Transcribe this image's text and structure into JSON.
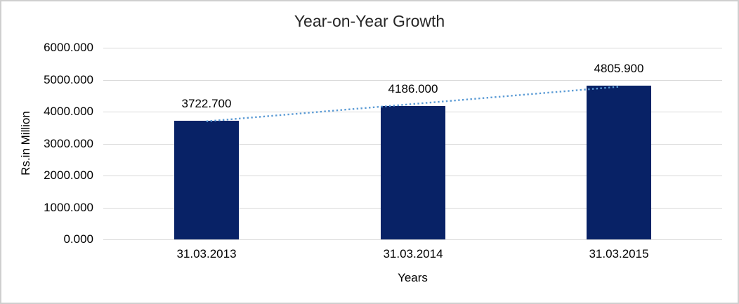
{
  "chart_data": {
    "type": "bar",
    "title": "Year-on-Year Growth",
    "categories": [
      "31.03.2013",
      "31.03.2014",
      "31.03.2015"
    ],
    "values": [
      3722.7,
      4186.0,
      4805.9
    ],
    "value_labels": [
      "3722.700",
      "4186.000",
      "4805.900"
    ],
    "xlabel": "Years",
    "ylabel": "Rs.in Million",
    "ylim": [
      0,
      6000
    ],
    "ytick_step": 1000,
    "ytick_labels": [
      "0.000",
      "1000.000",
      "2000.000",
      "3000.000",
      "4000.000",
      "5000.000",
      "6000.000"
    ],
    "grid": true,
    "legend_position": "none",
    "bar_color": "#082266",
    "trendline": {
      "type": "linear",
      "style": "dotted",
      "color": "#5b9bd5"
    },
    "gridline_color": "#d9d9d9",
    "frame_color": "#cfcfcf",
    "title_color": "#262626",
    "label_color": "#000000"
  }
}
